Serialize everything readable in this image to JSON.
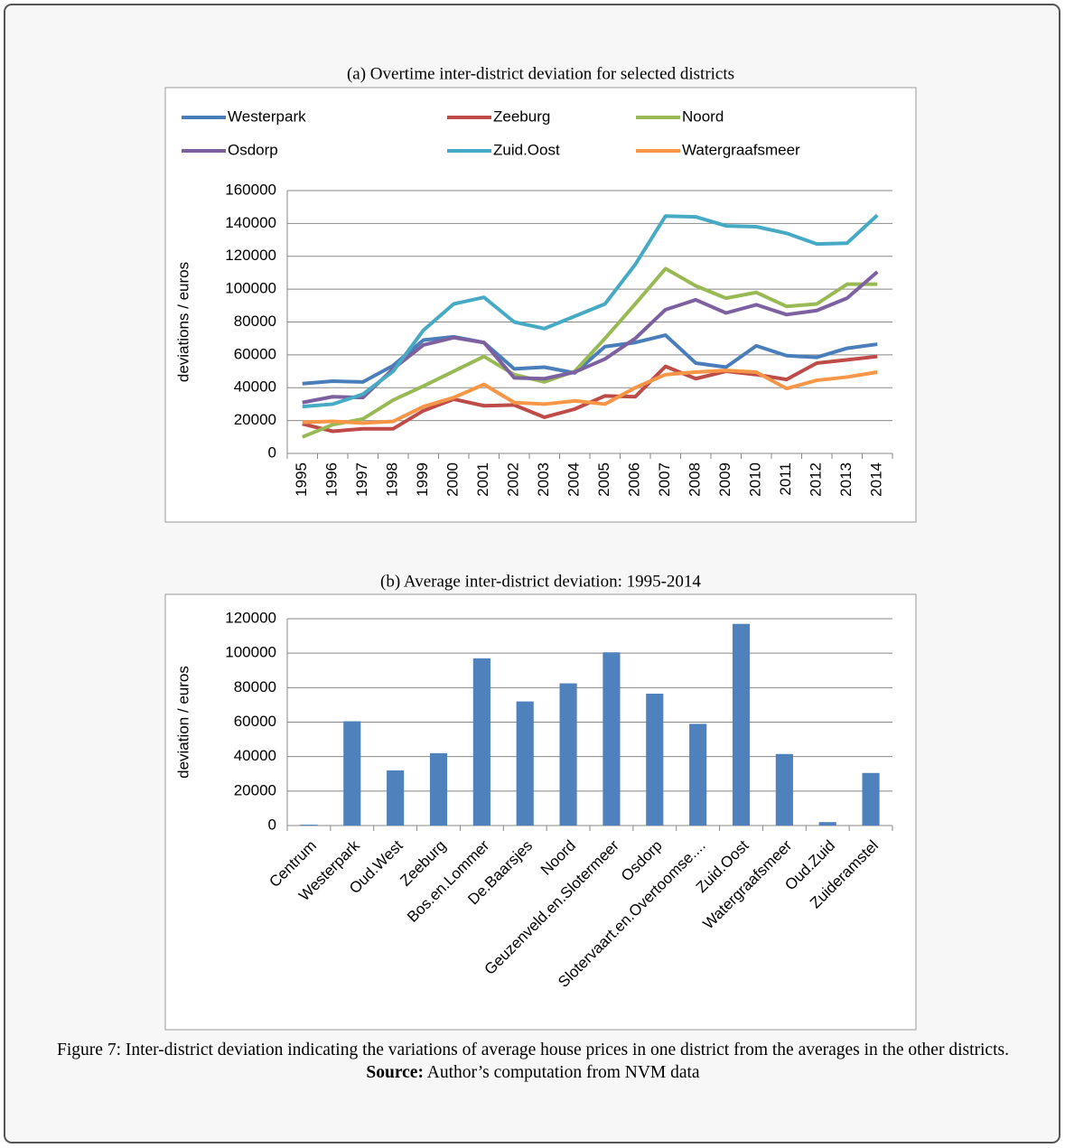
{
  "chart_data": [
    {
      "type": "line",
      "title": "(a) Overtime inter-district deviation for selected districts",
      "y_label": "deviations / euros",
      "categories": [
        "1995",
        "1996",
        "1997",
        "1998",
        "1999",
        "2000",
        "2001",
        "2002",
        "2003",
        "2004",
        "2005",
        "2006",
        "2007",
        "2008",
        "2009",
        "2010",
        "2011",
        "2012",
        "2013",
        "2014"
      ],
      "series": [
        {
          "name": "Westerpark",
          "color": "#4a7ebb",
          "values": [
            42500,
            44000,
            43500,
            53500,
            69000,
            71000,
            67500,
            51500,
            52500,
            49000,
            65000,
            67500,
            72000,
            55000,
            52500,
            65500,
            59500,
            58500,
            64000,
            66500
          ]
        },
        {
          "name": "Zeeburg",
          "color": "#be4b48",
          "values": [
            18000,
            13500,
            15000,
            15000,
            26000,
            33000,
            29000,
            29500,
            22000,
            27000,
            35000,
            34500,
            53000,
            45500,
            50000,
            48000,
            45000,
            55000,
            57000,
            59000
          ]
        },
        {
          "name": "Noord",
          "color": "#98b954",
          "values": [
            10000,
            17500,
            21000,
            32500,
            41000,
            50000,
            59000,
            48000,
            43500,
            50000,
            70000,
            91000,
            112500,
            102000,
            94500,
            98000,
            89500,
            91000,
            103000,
            103000
          ]
        },
        {
          "name": "Osdorp",
          "color": "#7d60a0",
          "values": [
            31000,
            34500,
            34000,
            51500,
            66000,
            70500,
            67500,
            46000,
            45500,
            49500,
            57500,
            70000,
            87500,
            93500,
            85500,
            90500,
            84500,
            87000,
            94500,
            110500
          ]
        },
        {
          "name": "Zuid.Oost",
          "color": "#46aac5",
          "values": [
            28500,
            30000,
            36000,
            50000,
            75000,
            91000,
            95000,
            80000,
            76000,
            83500,
            91000,
            115000,
            144500,
            144000,
            138500,
            138000,
            134000,
            127500,
            128000,
            145000
          ]
        },
        {
          "name": "Watergraafsmeer",
          "color": "#f79646",
          "values": [
            19000,
            19500,
            18500,
            19500,
            28500,
            34000,
            42000,
            31000,
            30000,
            32000,
            30000,
            40000,
            48000,
            49500,
            50500,
            49500,
            39500,
            44500,
            46500,
            49500
          ]
        }
      ],
      "ylim": [
        0,
        160000
      ],
      "yticks": [
        0,
        20000,
        40000,
        60000,
        80000,
        100000,
        120000,
        140000,
        160000
      ],
      "grid": true,
      "legend": "top"
    },
    {
      "type": "bar",
      "title": "(b) Average inter-district deviation: 1995-2014",
      "y_label": "deviation / euros",
      "categories": [
        "Centrum",
        "Westerpark",
        "Oud.West",
        "Zeeburg",
        "Bos.en.Lommer",
        "De.Baarsjes",
        "Noord",
        "Geuzenveld.en.Slotermeer",
        "Osdorp",
        "Slotervaart.en.Overtoomse....",
        "Zuid.Oost",
        "Watergraafsmeer",
        "Oud.Zuid",
        "Zuideramstel"
      ],
      "values": [
        500,
        60500,
        32000,
        42000,
        97000,
        72000,
        82500,
        100500,
        76500,
        59000,
        117000,
        41500,
        2000,
        30500
      ],
      "color": "#4f81bd",
      "ylim": [
        0,
        120000
      ],
      "yticks": [
        0,
        20000,
        40000,
        60000,
        80000,
        100000,
        120000
      ],
      "grid": true
    }
  ],
  "caption": {
    "text": "Figure 7: Inter-district deviation indicating the variations of average house prices in one district from the averages in the other districts.",
    "source_label": "Source:",
    "source_text": "Author’s computation from NVM data"
  }
}
